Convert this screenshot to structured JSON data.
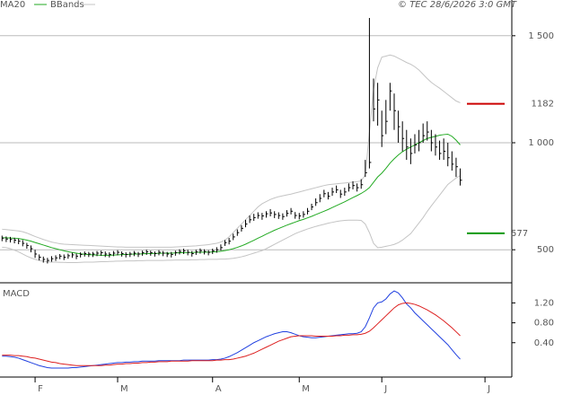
{
  "chart_data": [
    {
      "type": "ohlc",
      "copyright": "© TEC 28/6/2026 3:0 GMT",
      "color": "#000000",
      "ylim": [
        354,
        1667
      ],
      "yticks": [
        500,
        {
          "value": 1000,
          "label": "1 000"
        },
        {
          "value": 1500,
          "label": "1 500"
        }
      ],
      "grid": true,
      "high": [
        566,
        562,
        560,
        556,
        552,
        545,
        532,
        520,
        500,
        478,
        468,
        462,
        470,
        474,
        480,
        478,
        482,
        486,
        482,
        488,
        492,
        490,
        490,
        494,
        496,
        492,
        488,
        494,
        498,
        492,
        488,
        490,
        494,
        490,
        496,
        500,
        496,
        492,
        498,
        494,
        490,
        490,
        496,
        502,
        505,
        500,
        494,
        500,
        506,
        502,
        498,
        505,
        512,
        525,
        545,
        555,
        575,
        595,
        615,
        640,
        660,
        668,
        675,
        672,
        680,
        690,
        680,
        675,
        670,
        685,
        695,
        676,
        672,
        680,
        695,
        715,
        740,
        760,
        780,
        770,
        790,
        800,
        780,
        790,
        810,
        820,
        810,
        830,
        920,
        1583,
        1300,
        1280,
        1150,
        1200,
        1280,
        1230,
        1150,
        1100,
        1060,
        1020,
        1040,
        1060,
        1090,
        1100,
        1060,
        1040,
        1010,
        1020,
        1000,
        960,
        930,
        880,
        null,
        null,
        null,
        null,
        null,
        null,
        null,
        null,
        null,
        null,
        null,
        null
      ],
      "low": [
        540,
        536,
        534,
        530,
        526,
        516,
        505,
        488,
        462,
        450,
        440,
        436,
        444,
        448,
        456,
        452,
        458,
        462,
        456,
        464,
        468,
        466,
        466,
        470,
        472,
        466,
        464,
        470,
        474,
        468,
        464,
        466,
        470,
        466,
        472,
        476,
        472,
        468,
        474,
        470,
        466,
        464,
        472,
        478,
        480,
        474,
        468,
        476,
        482,
        478,
        474,
        480,
        486,
        496,
        518,
        525,
        545,
        565,
        585,
        605,
        625,
        635,
        645,
        640,
        650,
        656,
        648,
        644,
        640,
        655,
        665,
        645,
        642,
        650,
        665,
        685,
        705,
        722,
        745,
        735,
        752,
        765,
        742,
        752,
        772,
        782,
        772,
        785,
        840,
        880,
        1100,
        1080,
        980,
        1040,
        1150,
        1060,
        1000,
        960,
        920,
        900,
        950,
        960,
        1000,
        1010,
        960,
        940,
        920,
        920,
        890,
        870,
        840,
        800,
        null,
        null,
        null,
        null,
        null,
        null,
        null,
        null,
        null,
        null,
        null,
        null
      ],
      "close": [
        554,
        550,
        548,
        545,
        540,
        530,
        520,
        505,
        480,
        465,
        455,
        450,
        458,
        462,
        470,
        465,
        472,
        476,
        470,
        478,
        482,
        480,
        480,
        484,
        486,
        480,
        478,
        484,
        488,
        482,
        478,
        480,
        484,
        480,
        486,
        490,
        486,
        482,
        488,
        484,
        480,
        478,
        486,
        492,
        495,
        488,
        482,
        490,
        496,
        492,
        488,
        495,
        500,
        510,
        533,
        540,
        560,
        580,
        600,
        620,
        640,
        650,
        660,
        658,
        668,
        672,
        665,
        660,
        655,
        670,
        680,
        660,
        658,
        665,
        680,
        700,
        720,
        740,
        762,
        750,
        770,
        780,
        760,
        770,
        790,
        800,
        790,
        804,
        860,
        908,
        1158,
        1200,
        1033,
        1100,
        1242,
        1150,
        1075,
        1020,
        980,
        950,
        990,
        1000,
        1033,
        1050,
        1000,
        980,
        950,
        960,
        930,
        900,
        888,
        825,
        null,
        null,
        null,
        null,
        null,
        null,
        null,
        null,
        null,
        null,
        null,
        null
      ],
      "series": [
        {
          "name": "MA20",
          "color": "#22aa22",
          "values": [
            556,
            556,
            555,
            554,
            552,
            549,
            545,
            540,
            534,
            528,
            522,
            516,
            510,
            505,
            500,
            495,
            491,
            487,
            484,
            481,
            479,
            477,
            476,
            475,
            474,
            474,
            474,
            475,
            476,
            477,
            478,
            479,
            480,
            480,
            481,
            482,
            482,
            483,
            483,
            484,
            484,
            484,
            485,
            486,
            486,
            487,
            487,
            488,
            488,
            489,
            489,
            490,
            491,
            493,
            496,
            500,
            505,
            511,
            518,
            526,
            535,
            544,
            554,
            563,
            573,
            582,
            591,
            599,
            607,
            615,
            622,
            629,
            636,
            642,
            649,
            656,
            664,
            672,
            680,
            688,
            697,
            706,
            715,
            724,
            734,
            744,
            753,
            763,
            775,
            790,
            815,
            840,
            858,
            880,
            905,
            925,
            943,
            958,
            970,
            980,
            990,
            1000,
            1010,
            1020,
            1025,
            1030,
            1035,
            1038,
            1040,
            1030,
            1012,
            990,
            null,
            null,
            null,
            null,
            null,
            null,
            null,
            null,
            null,
            null,
            null,
            null
          ]
        }
      ],
      "bands": {
        "name": "BBands",
        "color": "#c4c4c4",
        "upper": [
          596,
          594,
          592,
          590,
          588,
          584,
          578,
          570,
          562,
          555,
          548,
          542,
          536,
          532,
          528,
          526,
          525,
          524,
          523,
          522,
          521,
          520,
          519,
          518,
          517,
          516,
          515,
          514,
          513,
          513,
          512,
          512,
          512,
          512,
          512,
          512,
          512,
          512,
          512,
          512,
          512,
          512,
          513,
          514,
          515,
          516,
          517,
          518,
          520,
          522,
          524,
          527,
          530,
          536,
          545,
          560,
          580,
          600,
          620,
          640,
          660,
          680,
          700,
          715,
          725,
          735,
          742,
          748,
          752,
          756,
          760,
          765,
          770,
          775,
          780,
          785,
          790,
          795,
          800,
          804,
          806,
          808,
          810,
          812,
          814,
          816,
          818,
          822,
          850,
          1050,
          1250,
          1350,
          1400,
          1405,
          1410,
          1405,
          1395,
          1385,
          1375,
          1367,
          1355,
          1340,
          1320,
          1300,
          1282,
          1268,
          1255,
          1240,
          1225,
          1210,
          1195,
          1187,
          null,
          null,
          null,
          null,
          null,
          null,
          null,
          null,
          null,
          null,
          null,
          null
        ],
        "lower": [
          512,
          510,
          505,
          498,
          490,
          480,
          470,
          462,
          455,
          450,
          446,
          443,
          442,
          442,
          441,
          441,
          440,
          440,
          440,
          441,
          442,
          442,
          442,
          443,
          444,
          444,
          445,
          446,
          447,
          447,
          448,
          448,
          448,
          449,
          449,
          450,
          450,
          450,
          450,
          450,
          451,
          451,
          452,
          452,
          452,
          452,
          453,
          453,
          454,
          454,
          455,
          455,
          455,
          456,
          456,
          458,
          460,
          463,
          467,
          472,
          478,
          484,
          490,
          496,
          505,
          515,
          525,
          535,
          545,
          555,
          565,
          575,
          583,
          590,
          597,
          603,
          609,
          614,
          619,
          624,
          628,
          632,
          635,
          637,
          638,
          638,
          638,
          637,
          620,
          580,
          530,
          510,
          512,
          516,
          520,
          525,
          533,
          545,
          560,
          575,
          600,
          625,
          650,
          679,
          705,
          730,
          755,
          780,
          805,
          820,
          835,
          846,
          null,
          null,
          null,
          null,
          null,
          null,
          null,
          null,
          null,
          null,
          null,
          null
        ]
      },
      "levels": [
        {
          "value": 1182,
          "color": "#cc0000"
        },
        {
          "value": 577,
          "color": "#119911"
        }
      ]
    },
    {
      "type": "line",
      "title": "MACD",
      "categories": [
        null,
        null,
        null,
        null,
        null,
        null,
        null,
        null,
        "F",
        null,
        null,
        null,
        null,
        null,
        null,
        null,
        null,
        null,
        null,
        null,
        null,
        null,
        null,
        null,
        null,
        null,
        null,
        null,
        "M",
        null,
        null,
        null,
        null,
        null,
        null,
        null,
        null,
        null,
        null,
        null,
        null,
        null,
        null,
        null,
        null,
        null,
        null,
        null,
        null,
        null,
        null,
        "A",
        null,
        null,
        null,
        null,
        null,
        null,
        null,
        null,
        null,
        null,
        null,
        null,
        null,
        null,
        null,
        null,
        null,
        null,
        null,
        null,
        "M",
        null,
        null,
        null,
        null,
        null,
        null,
        null,
        null,
        null,
        null,
        null,
        null,
        null,
        null,
        null,
        null,
        null,
        null,
        null,
        "J",
        null,
        null,
        null,
        null,
        null,
        null,
        null,
        null,
        null,
        null,
        null,
        null,
        null,
        null,
        null,
        null,
        null,
        null,
        null,
        null,
        null,
        null,
        null,
        null,
        "J",
        null,
        null,
        null,
        null,
        null,
        null
      ],
      "ylim": [
        -0.29,
        1.55
      ],
      "yticks": [
        {
          "value": 0.4,
          "label": "0.40"
        },
        {
          "value": 0.8,
          "label": "0.80"
        },
        {
          "value": 1.2,
          "label": "1.20"
        }
      ],
      "series": [
        {
          "color": "#2040e0",
          "values": [
            0.13,
            0.13,
            0.12,
            0.11,
            0.09,
            0.06,
            0.03,
            0,
            -0.03,
            -0.06,
            -0.08,
            -0.1,
            -0.11,
            -0.11,
            -0.11,
            -0.11,
            -0.11,
            -0.1,
            -0.1,
            -0.09,
            -0.08,
            -0.07,
            -0.06,
            -0.05,
            -0.04,
            -0.03,
            -0.02,
            -0.01,
            0,
            0,
            0.01,
            0.01,
            0.02,
            0.02,
            0.03,
            0.03,
            0.03,
            0.03,
            0.04,
            0.04,
            0.04,
            0.04,
            0.04,
            0.04,
            0.05,
            0.05,
            0.05,
            0.05,
            0.05,
            0.05,
            0.05,
            0.06,
            0.06,
            0.07,
            0.09,
            0.12,
            0.16,
            0.2,
            0.25,
            0.3,
            0.35,
            0.4,
            0.44,
            0.48,
            0.52,
            0.55,
            0.58,
            0.6,
            0.62,
            0.62,
            0.6,
            0.57,
            0.54,
            0.52,
            0.51,
            0.5,
            0.5,
            0.51,
            0.52,
            0.53,
            0.54,
            0.55,
            0.56,
            0.57,
            0.58,
            0.58,
            0.59,
            0.62,
            0.72,
            0.9,
            1.1,
            1.2,
            1.22,
            1.28,
            1.38,
            1.44,
            1.4,
            1.3,
            1.18,
            1.1,
            1,
            0.92,
            0.84,
            0.76,
            0.68,
            0.6,
            0.52,
            0.44,
            0.36,
            0.26,
            0.16,
            0.07,
            null,
            null,
            null,
            null,
            null,
            null,
            null,
            null,
            null,
            null,
            null,
            null
          ]
        },
        {
          "color": "#dd2020",
          "values": [
            0.15,
            0.15,
            0.15,
            0.14,
            0.14,
            0.13,
            0.12,
            0.1,
            0.09,
            0.07,
            0.05,
            0.03,
            0.01,
            0,
            -0.02,
            -0.03,
            -0.04,
            -0.05,
            -0.06,
            -0.06,
            -0.06,
            -0.06,
            -0.06,
            -0.06,
            -0.06,
            -0.05,
            -0.05,
            -0.04,
            -0.03,
            -0.03,
            -0.02,
            -0.02,
            -0.01,
            -0.01,
            0,
            0,
            0.01,
            0.01,
            0.02,
            0.02,
            0.02,
            0.03,
            0.03,
            0.03,
            0.03,
            0.03,
            0.04,
            0.04,
            0.04,
            0.04,
            0.04,
            0.04,
            0.05,
            0.05,
            0.06,
            0.06,
            0.07,
            0.09,
            0.11,
            0.13,
            0.16,
            0.19,
            0.23,
            0.27,
            0.31,
            0.35,
            0.39,
            0.43,
            0.46,
            0.49,
            0.52,
            0.53,
            0.54,
            0.54,
            0.54,
            0.54,
            0.53,
            0.53,
            0.53,
            0.53,
            0.53,
            0.54,
            0.54,
            0.55,
            0.55,
            0.56,
            0.56,
            0.57,
            0.59,
            0.63,
            0.7,
            0.78,
            0.86,
            0.94,
            1.02,
            1.1,
            1.16,
            1.19,
            1.2,
            1.19,
            1.17,
            1.14,
            1.1,
            1.06,
            1.01,
            0.96,
            0.9,
            0.84,
            0.77,
            0.7,
            0.62,
            0.54,
            null,
            null,
            null,
            null,
            null,
            null,
            null,
            null,
            null,
            null,
            null,
            null
          ]
        }
      ]
    }
  ]
}
